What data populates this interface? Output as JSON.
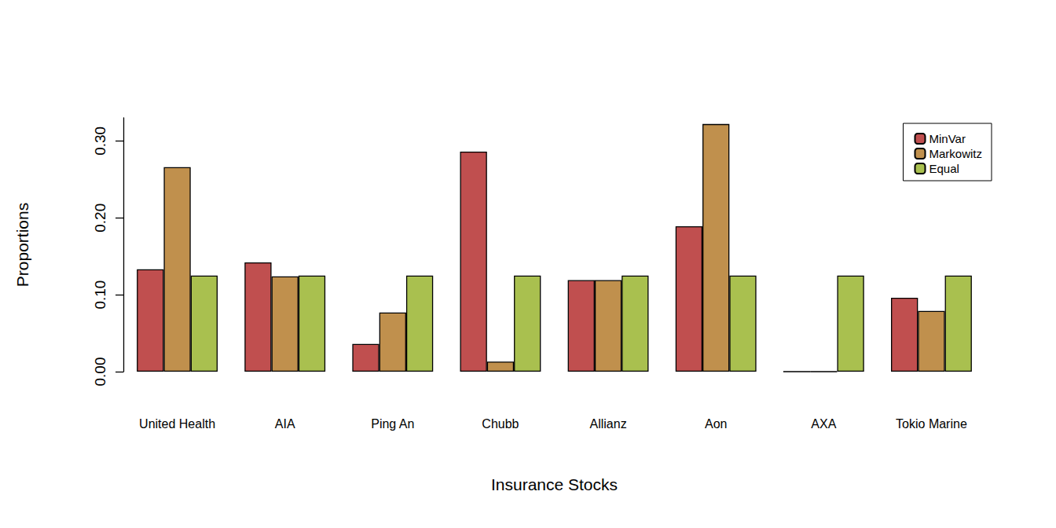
{
  "chart_data": {
    "type": "bar",
    "x_label": "Insurance Stocks",
    "y_label": "Proportions",
    "categories": [
      "United Health",
      "AIA",
      "Ping An",
      "Chubb",
      "Allianz",
      "Aon",
      "AXA",
      "Tokio Marine"
    ],
    "series": [
      {
        "name": "MinVar",
        "color": "#c04f4f",
        "values": [
          0.133,
          0.142,
          0.036,
          0.286,
          0.119,
          0.189,
          0,
          0.096
        ]
      },
      {
        "name": "Markowitz",
        "color": "#c0904d",
        "values": [
          0.266,
          0.124,
          0.077,
          0.013,
          0.119,
          0.322,
          0,
          0.079
        ]
      },
      {
        "name": "Equal",
        "color": "#a9c04f",
        "values": [
          0.125,
          0.125,
          0.125,
          0.125,
          0.125,
          0.125,
          0.125,
          0.125
        ]
      }
    ],
    "ylim": [
      0,
      0.33
    ],
    "yticks": [
      {
        "value": 0,
        "label": "0.00"
      },
      {
        "value": 0.1,
        "label": "0.10"
      },
      {
        "value": 0.2,
        "label": "0.20"
      },
      {
        "value": 0.3,
        "label": "0.30"
      }
    ],
    "legend": "top-right",
    "grid": false
  }
}
